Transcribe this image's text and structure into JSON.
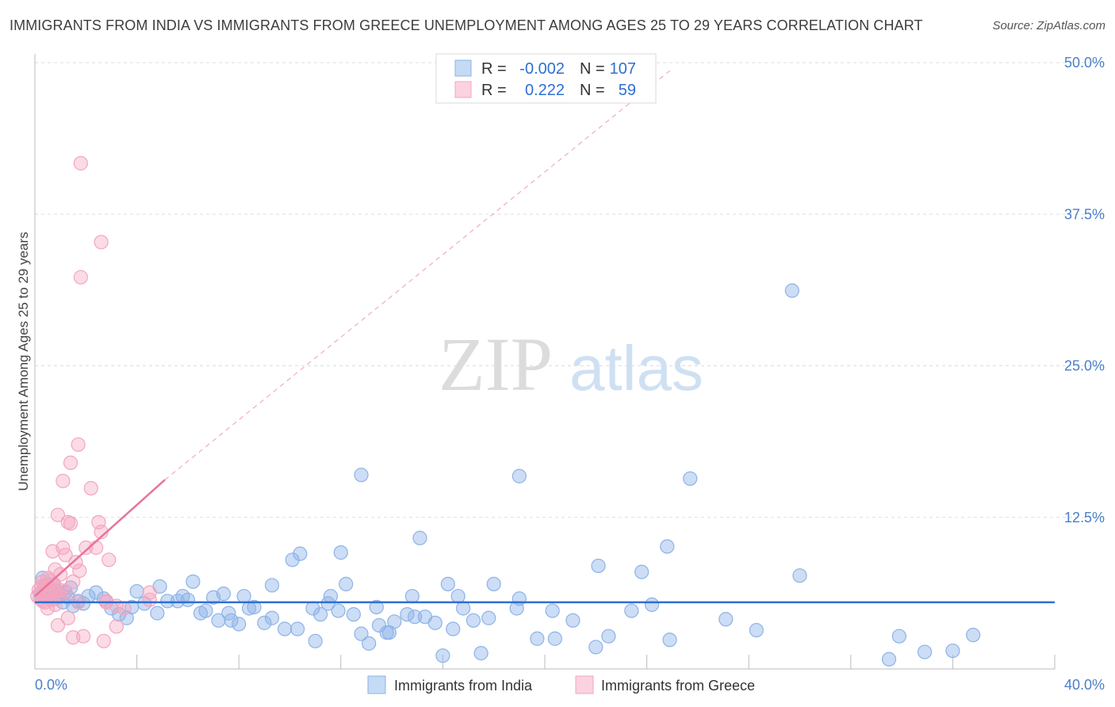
{
  "title": "IMMIGRANTS FROM INDIA VS IMMIGRANTS FROM GREECE UNEMPLOYMENT AMONG AGES 25 TO 29 YEARS CORRELATION CHART",
  "source": "Source: ZipAtlas.com",
  "watermark": {
    "zip": "ZIP",
    "atlas": "atlas"
  },
  "legend_box": {
    "rows": [
      {
        "r_label": "R =",
        "r_value": "-0.002",
        "n_label": "N =",
        "n_value": "107"
      },
      {
        "r_label": "R =",
        "r_value": "0.222",
        "n_label": "N =",
        "n_value": "59"
      }
    ]
  },
  "chart_data": {
    "type": "scatter",
    "title": "IMMIGRANTS FROM INDIA VS IMMIGRANTS FROM GREECE UNEMPLOYMENT AMONG AGES 25 TO 29 YEARS CORRELATION CHART",
    "xlabel": "",
    "ylabel": "Unemployment Among Ages 25 to 29 years",
    "xlim": [
      0,
      40
    ],
    "ylim": [
      0,
      50
    ],
    "x_tick_labels": [
      "0.0%",
      "40.0%"
    ],
    "y_ticks": [
      12.5,
      25.0,
      37.5,
      50.0
    ],
    "y_tick_labels": [
      "12.5%",
      "25.0%",
      "37.5%",
      "50.0%"
    ],
    "grid": true,
    "legend_position": "bottom-center",
    "colors": {
      "india": "#8db3e8",
      "india_line": "#2f6fd0",
      "greece": "#f4a5bf",
      "greece_line": "#e8739b"
    },
    "series": [
      {
        "name": "Immigrants from India",
        "r": -0.002,
        "n": 107,
        "trend": {
          "x": [
            0,
            40
          ],
          "y": [
            5.5,
            5.5
          ]
        },
        "points": [
          [
            0.2,
            6.2
          ],
          [
            0.3,
            7.5
          ],
          [
            0.4,
            6.8
          ],
          [
            0.5,
            6.0
          ],
          [
            0.6,
            6.5
          ],
          [
            0.7,
            7.0
          ],
          [
            0.8,
            5.8
          ],
          [
            0.9,
            6.4
          ],
          [
            1.0,
            6.1
          ],
          [
            1.1,
            5.5
          ],
          [
            1.2,
            6.3
          ],
          [
            1.3,
            5.9
          ],
          [
            1.4,
            6.7
          ],
          [
            1.5,
            5.2
          ],
          [
            1.7,
            5.6
          ],
          [
            1.9,
            5.4
          ],
          [
            2.1,
            6.0
          ],
          [
            2.4,
            6.3
          ],
          [
            2.7,
            5.8
          ],
          [
            3.0,
            5.0
          ],
          [
            3.3,
            4.5
          ],
          [
            3.6,
            4.2
          ],
          [
            3.8,
            5.1
          ],
          [
            4.0,
            6.4
          ],
          [
            4.3,
            5.4
          ],
          [
            4.8,
            4.6
          ],
          [
            4.9,
            6.8
          ],
          [
            5.2,
            5.6
          ],
          [
            5.6,
            5.6
          ],
          [
            5.8,
            6.0
          ],
          [
            6.0,
            5.7
          ],
          [
            6.2,
            7.2
          ],
          [
            6.5,
            4.6
          ],
          [
            6.7,
            4.8
          ],
          [
            7.0,
            5.9
          ],
          [
            7.2,
            4.0
          ],
          [
            7.4,
            6.2
          ],
          [
            7.6,
            4.6
          ],
          [
            7.7,
            4.0
          ],
          [
            8.0,
            3.7
          ],
          [
            8.2,
            6.0
          ],
          [
            8.4,
            5.0
          ],
          [
            8.6,
            5.1
          ],
          [
            9.0,
            3.8
          ],
          [
            9.3,
            4.2
          ],
          [
            9.3,
            6.9
          ],
          [
            9.8,
            3.3
          ],
          [
            10.1,
            9.0
          ],
          [
            10.3,
            3.3
          ],
          [
            10.4,
            9.5
          ],
          [
            10.9,
            5.0
          ],
          [
            11.0,
            2.3
          ],
          [
            11.2,
            4.5
          ],
          [
            11.5,
            5.4
          ],
          [
            11.6,
            6.0
          ],
          [
            11.9,
            4.8
          ],
          [
            12.0,
            9.6
          ],
          [
            12.2,
            7.0
          ],
          [
            12.5,
            4.5
          ],
          [
            12.8,
            2.9
          ],
          [
            12.8,
            16.0
          ],
          [
            13.1,
            2.1
          ],
          [
            13.4,
            5.1
          ],
          [
            13.5,
            3.6
          ],
          [
            13.8,
            3.0
          ],
          [
            13.9,
            3.0
          ],
          [
            14.1,
            3.9
          ],
          [
            14.6,
            4.5
          ],
          [
            14.8,
            6.0
          ],
          [
            14.9,
            4.3
          ],
          [
            15.1,
            10.8
          ],
          [
            15.3,
            4.3
          ],
          [
            15.7,
            3.8
          ],
          [
            16.0,
            1.1
          ],
          [
            16.2,
            7.0
          ],
          [
            16.4,
            3.3
          ],
          [
            16.6,
            6.0
          ],
          [
            16.8,
            5.0
          ],
          [
            17.2,
            4.0
          ],
          [
            17.5,
            1.3
          ],
          [
            17.8,
            4.2
          ],
          [
            18.0,
            7.0
          ],
          [
            18.9,
            5.0
          ],
          [
            19.0,
            5.8
          ],
          [
            19.0,
            15.9
          ],
          [
            19.7,
            2.5
          ],
          [
            20.3,
            4.8
          ],
          [
            20.4,
            2.5
          ],
          [
            21.1,
            4.0
          ],
          [
            22.0,
            1.8
          ],
          [
            22.1,
            8.5
          ],
          [
            22.5,
            2.7
          ],
          [
            23.4,
            4.8
          ],
          [
            23.8,
            8.0
          ],
          [
            24.2,
            5.3
          ],
          [
            24.8,
            10.1
          ],
          [
            24.9,
            2.4
          ],
          [
            25.7,
            15.7
          ],
          [
            27.1,
            4.1
          ],
          [
            28.3,
            3.2
          ],
          [
            29.7,
            31.2
          ],
          [
            30.0,
            7.7
          ],
          [
            33.5,
            0.8
          ],
          [
            33.9,
            2.7
          ],
          [
            34.9,
            1.4
          ],
          [
            36.0,
            1.5
          ],
          [
            36.8,
            2.8
          ]
        ]
      },
      {
        "name": "Immigrants from Greece",
        "r": 0.222,
        "n": 59,
        "trend": {
          "x": [
            0,
            5.1
          ],
          "y": [
            6.0,
            15.6
          ]
        },
        "trend_extended": {
          "x": [
            5.1,
            25
          ],
          "y": [
            15.6,
            49.5
          ]
        },
        "points": [
          [
            0.1,
            6.0
          ],
          [
            0.15,
            6.5
          ],
          [
            0.2,
            5.8
          ],
          [
            0.25,
            6.8
          ],
          [
            0.3,
            7.2
          ],
          [
            0.35,
            6.2
          ],
          [
            0.4,
            5.5
          ],
          [
            0.45,
            6.9
          ],
          [
            0.5,
            7.5
          ],
          [
            0.5,
            5.0
          ],
          [
            0.55,
            6.3
          ],
          [
            0.6,
            6.1
          ],
          [
            0.65,
            5.7
          ],
          [
            0.7,
            6.6
          ],
          [
            0.7,
            9.7
          ],
          [
            0.75,
            7.0
          ],
          [
            0.8,
            5.3
          ],
          [
            0.8,
            8.2
          ],
          [
            0.85,
            6.4
          ],
          [
            0.9,
            3.6
          ],
          [
            0.9,
            12.7
          ],
          [
            1.0,
            6.0
          ],
          [
            1.0,
            7.8
          ],
          [
            1.1,
            15.5
          ],
          [
            1.1,
            10.0
          ],
          [
            1.2,
            9.4
          ],
          [
            1.2,
            6.4
          ],
          [
            1.3,
            4.2
          ],
          [
            1.3,
            12.1
          ],
          [
            1.4,
            17.0
          ],
          [
            1.4,
            12.0
          ],
          [
            1.5,
            2.6
          ],
          [
            1.5,
            7.2
          ],
          [
            1.6,
            8.8
          ],
          [
            1.7,
            5.5
          ],
          [
            1.7,
            18.5
          ],
          [
            1.75,
            8.1
          ],
          [
            1.8,
            41.7
          ],
          [
            1.8,
            32.3
          ],
          [
            1.9,
            2.7
          ],
          [
            2.0,
            10.0
          ],
          [
            2.2,
            14.9
          ],
          [
            2.4,
            10.0
          ],
          [
            2.5,
            12.1
          ],
          [
            2.6,
            11.3
          ],
          [
            2.6,
            35.2
          ],
          [
            2.7,
            2.3
          ],
          [
            2.8,
            5.5
          ],
          [
            2.8,
            5.6
          ],
          [
            2.9,
            9.0
          ],
          [
            3.2,
            5.2
          ],
          [
            3.2,
            3.5
          ],
          [
            3.5,
            5.0
          ],
          [
            4.5,
            6.3
          ],
          [
            4.5,
            5.7
          ],
          [
            0.4,
            6.9
          ],
          [
            0.6,
            7.3
          ],
          [
            0.3,
            5.6
          ],
          [
            1.0,
            6.5
          ]
        ]
      }
    ]
  },
  "bottom_legend": {
    "india_label": "Immigrants from India",
    "greece_label": "Immigrants from Greece"
  }
}
